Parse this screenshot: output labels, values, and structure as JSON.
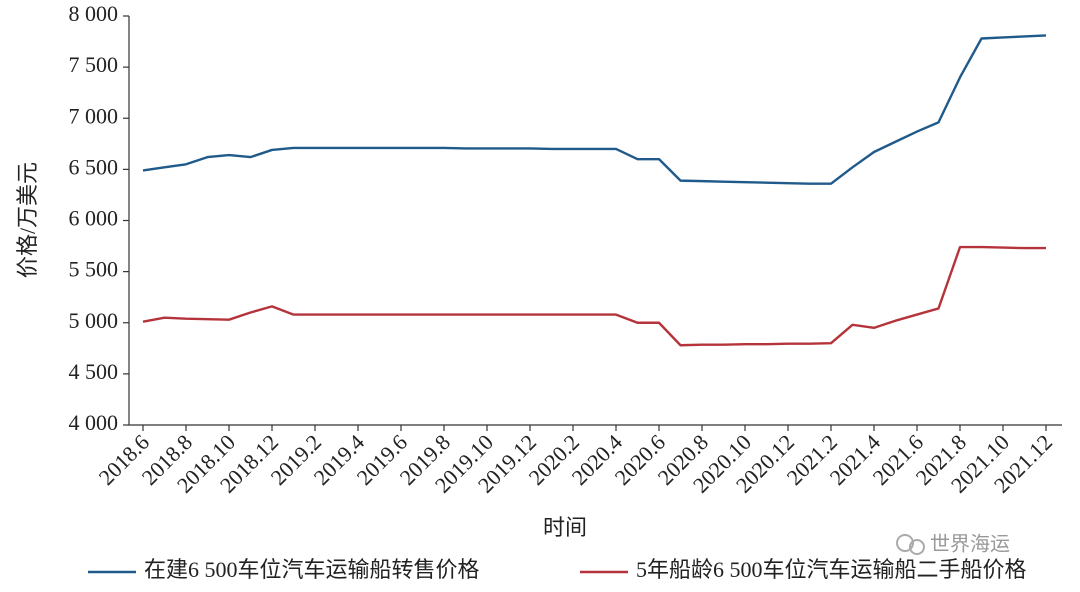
{
  "chart_data": {
    "type": "line",
    "x_label": "时间",
    "y_label": "价格/万美元",
    "watermark": "世界海运",
    "categories": [
      "2018.6",
      null,
      "2018.8",
      null,
      "2018.10",
      null,
      "2018.12",
      null,
      "2019.2",
      null,
      "2019.4",
      null,
      "2019.6",
      null,
      "2019.8",
      null,
      "2019.10",
      null,
      "2019.12",
      null,
      "2020.2",
      null,
      "2020.4",
      null,
      "2020.6",
      null,
      "2020.8",
      null,
      "2020.10",
      null,
      "2020.12",
      null,
      "2021.2",
      null,
      "2021.4",
      null,
      "2021.6",
      null,
      "2021.8",
      null,
      "2021.10",
      null,
      "2021.12"
    ],
    "ylim": [
      4000,
      8000
    ],
    "yticks": [
      {
        "value": 4000,
        "label": "4 000"
      },
      {
        "value": 4500,
        "label": "4 500"
      },
      {
        "value": 5000,
        "label": "5 000"
      },
      {
        "value": 5500,
        "label": "5 500"
      },
      {
        "value": 6000,
        "label": "6 000"
      },
      {
        "value": 6500,
        "label": "6 500"
      },
      {
        "value": 7000,
        "label": "7 000"
      },
      {
        "value": 7500,
        "label": "7 500"
      },
      {
        "value": 8000,
        "label": "8 000"
      }
    ],
    "grid": false,
    "series": [
      {
        "name": "在建6 500车位汽车运输船转售价格",
        "color": "#1f5a8a",
        "values": [
          6490,
          6520,
          6550,
          6620,
          6640,
          6620,
          6690,
          6710,
          6710,
          6710,
          6710,
          6710,
          6710,
          6710,
          6710,
          6705,
          6705,
          6705,
          6705,
          6700,
          6700,
          6700,
          6700,
          6600,
          6600,
          6390,
          6385,
          6380,
          6375,
          6370,
          6365,
          6360,
          6360,
          6520,
          6670,
          6770,
          6870,
          6960,
          7400,
          7780,
          7790,
          7800,
          7810
        ]
      },
      {
        "name": "5年船龄6 500车位汽车运输船二手船价格",
        "color": "#b5343c",
        "values": [
          5010,
          5050,
          5040,
          5035,
          5030,
          5100,
          5160,
          5080,
          5080,
          5080,
          5080,
          5080,
          5080,
          5080,
          5080,
          5080,
          5080,
          5080,
          5080,
          5080,
          5080,
          5080,
          5080,
          5000,
          5000,
          4780,
          4785,
          4785,
          4790,
          4790,
          4795,
          4795,
          4800,
          4980,
          4950,
          5020,
          5080,
          5140,
          5740,
          5740,
          5735,
          5730,
          5730
        ]
      }
    ]
  }
}
